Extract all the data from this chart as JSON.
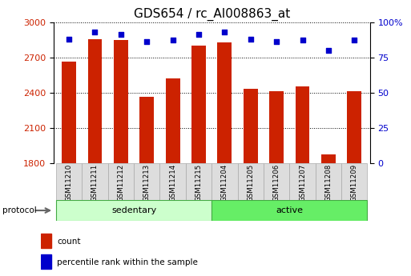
{
  "title": "GDS654 / rc_AI008863_at",
  "samples": [
    "GSM11210",
    "GSM11211",
    "GSM11212",
    "GSM11213",
    "GSM11214",
    "GSM11215",
    "GSM11204",
    "GSM11205",
    "GSM11206",
    "GSM11207",
    "GSM11208",
    "GSM11209"
  ],
  "counts": [
    2660,
    2855,
    2845,
    2360,
    2520,
    2800,
    2830,
    2430,
    2410,
    2450,
    1870,
    2410
  ],
  "percentile_ranks": [
    88,
    93,
    91,
    86,
    87,
    91,
    93,
    88,
    86,
    87,
    80,
    87
  ],
  "bar_color": "#cc2200",
  "dot_color": "#0000cc",
  "ylim_left": [
    1800,
    3000
  ],
  "ylim_right": [
    0,
    100
  ],
  "yticks_left": [
    1800,
    2100,
    2400,
    2700,
    3000
  ],
  "yticks_right": [
    0,
    25,
    50,
    75,
    100
  ],
  "ytick_labels_right": [
    "0",
    "25",
    "50",
    "75",
    "100%"
  ],
  "legend_count_label": "count",
  "legend_pct_label": "percentile rank within the sample",
  "protocol_label": "protocol",
  "sed_color": "#ccffcc",
  "act_color": "#66ee66",
  "group_border_color": "#44aa44",
  "title_fontsize": 11,
  "tick_fontsize": 8,
  "bar_width": 0.55
}
